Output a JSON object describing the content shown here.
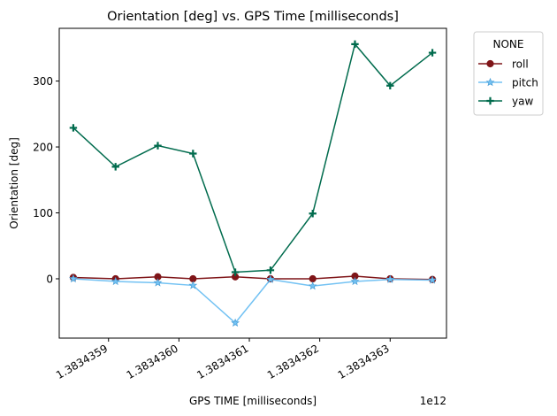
{
  "chart_data": {
    "type": "line",
    "title": "Orientation [deg] vs. GPS Time [milliseconds]",
    "xlabel": "GPS TIME [milliseconds]",
    "ylabel": "Orientation [deg]",
    "x_offset_label": "1e12",
    "x_ticks": [
      {
        "value": 1.3834359,
        "label": "1.3834359"
      },
      {
        "value": 1.383436,
        "label": "1.3834360"
      },
      {
        "value": 1.3834361,
        "label": "1.3834361"
      },
      {
        "value": 1.3834362,
        "label": "1.3834362"
      },
      {
        "value": 1.3834363,
        "label": "1.3834363"
      }
    ],
    "y_ticks": [
      {
        "value": 0,
        "label": "0"
      },
      {
        "value": 100,
        "label": "100"
      },
      {
        "value": 200,
        "label": "200"
      },
      {
        "value": 300,
        "label": "300"
      }
    ],
    "xlim": [
      1.38343583,
      1.38343638
    ],
    "ylim": [
      -90,
      380
    ],
    "x": [
      1.38343585,
      1.38343591,
      1.38343597,
      1.38343602,
      1.38343608,
      1.38343613,
      1.38343619,
      1.38343625,
      1.3834363,
      1.38343636
    ],
    "legend": {
      "title": "NONE",
      "position": "outside-right-top"
    },
    "series": [
      {
        "name": "roll",
        "color": "#7f1518",
        "marker": "circle",
        "values": [
          2,
          0,
          3,
          0,
          3,
          0,
          0,
          4,
          0,
          -1
        ]
      },
      {
        "name": "pitch",
        "color": "#73c2f3",
        "marker": "star",
        "values": [
          0,
          -4,
          -6,
          -10,
          -67,
          -1,
          -11,
          -4,
          -1,
          -2
        ]
      },
      {
        "name": "yaw",
        "color": "#006b4d",
        "marker": "plus",
        "values": [
          229,
          170,
          202,
          190,
          10,
          13,
          99,
          356,
          293,
          343
        ]
      }
    ]
  }
}
